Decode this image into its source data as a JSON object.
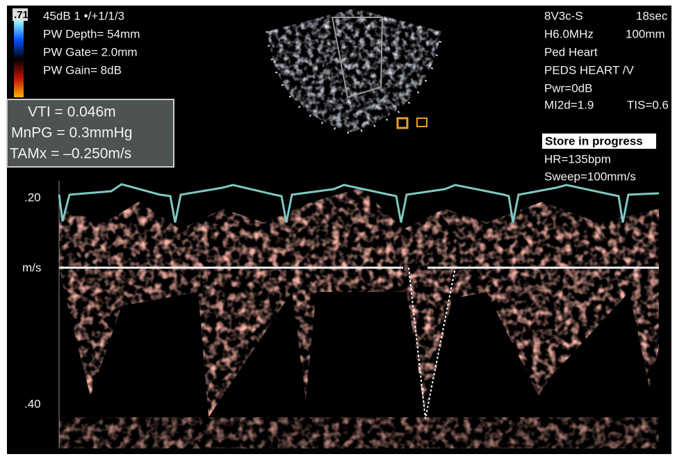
{
  "header": {
    "colorbar_value": ".71",
    "lines": [
      "45dB 1 •/+1/1/3",
      "PW Depth= 54mm",
      "PW Gate= 2.0mm",
      "PW Gain= 8dB"
    ]
  },
  "measurements": [
    "VTI = 0.046m",
    "MnPG = 0.3mmHg",
    "TAMx = –0.250m/s"
  ],
  "settings": {
    "probe": "8V3c-S",
    "time": "18sec",
    "frequency": "H6.0MHz",
    "depth": "100mm",
    "preset": "Ped Heart",
    "exam": "PEDS HEART /V",
    "power": "Pwr=0dB",
    "mi": "MI2d=1.9",
    "tis": "TIS=0.6",
    "status": "Store in progress",
    "hr": "HR=135bpm",
    "sweep": "Sweep=100mm/s"
  },
  "scale": {
    "top": ".20",
    "unit": "m/s",
    "bottom": ".40"
  }
}
